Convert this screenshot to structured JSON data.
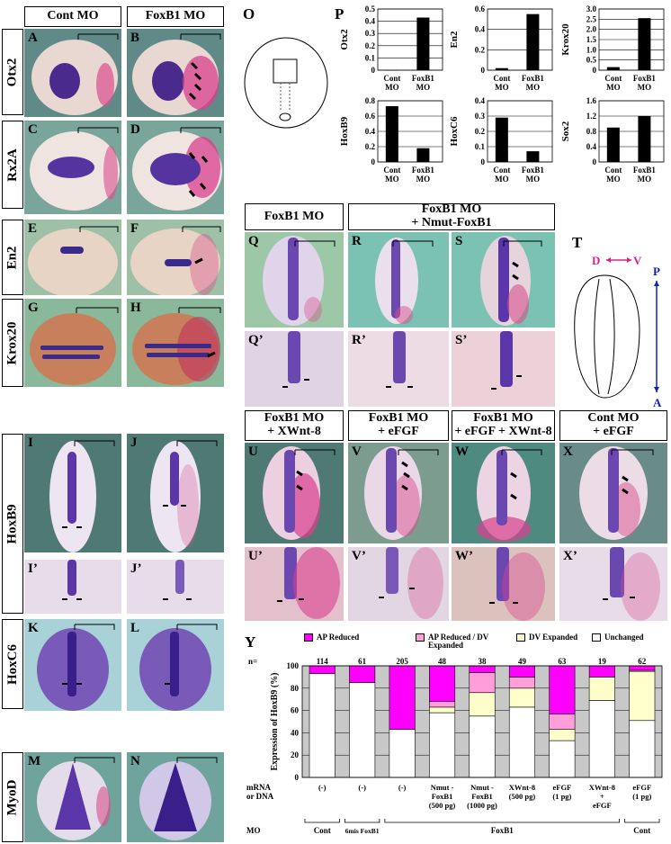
{
  "left_headers": {
    "cont": "Cont MO",
    "foxb1": "FoxB1 MO"
  },
  "row_labels": [
    "Otx2",
    "Rx2A",
    "En2",
    "Krox20",
    "HoxB9",
    "HoxC6",
    "MyoD"
  ],
  "left_panel_letters": [
    "A",
    "B",
    "C",
    "D",
    "E",
    "F",
    "G",
    "H",
    "I",
    "J",
    "I’",
    "J’",
    "K",
    "L",
    "M",
    "N"
  ],
  "fig_letters": {
    "O": "O",
    "P": "P",
    "T": "T",
    "Y": "Y"
  },
  "mid_headers": {
    "foxb1": "FoxB1 MO",
    "rescue_l1": "FoxB1 MO",
    "rescue_l2": "+ Nmut-FoxB1"
  },
  "mid_panel_letters": [
    "Q",
    "R",
    "S",
    "Q’",
    "R’",
    "S’"
  ],
  "low_headers": [
    {
      "l1": "FoxB1 MO",
      "l2": "+ XWnt-8"
    },
    {
      "l1": "FoxB1 MO",
      "l2": "+ eFGF"
    },
    {
      "l1": "FoxB1 MO",
      "l2": "+ eFGF + XWnt-8"
    },
    {
      "l1": "Cont MO",
      "l2": "+ eFGF"
    }
  ],
  "low_panel_letters": [
    "U",
    "V",
    "W",
    "X",
    "U’",
    "V’",
    "W’",
    "X’"
  ],
  "axis_labels": {
    "d": "D",
    "v": "V",
    "p": "P",
    "a": "A"
  },
  "chart_data": [
    {
      "type": "bar",
      "ylabel": "Otx2",
      "categories": [
        "Cont MO",
        "FoxB1 MO"
      ],
      "values": [
        0.0,
        0.43
      ],
      "ylim": [
        0,
        0.5
      ],
      "ticks": [
        "0",
        "0.1",
        "0.2",
        "0.3",
        "0.4",
        "0.5"
      ]
    },
    {
      "type": "bar",
      "ylabel": "En2",
      "categories": [
        "Cont MO",
        "FoxB1 MO"
      ],
      "values": [
        0.02,
        0.55
      ],
      "ylim": [
        0,
        0.6
      ],
      "ticks": [
        "0",
        "0.2",
        "0.4",
        "0.6"
      ]
    },
    {
      "type": "bar",
      "ylabel": "Krox20",
      "categories": [
        "Cont MO",
        "FoxB1 MO"
      ],
      "values": [
        0.15,
        2.55
      ],
      "ylim": [
        0,
        3.0
      ],
      "ticks": [
        "0",
        "0.5",
        "1.0",
        "1.5",
        "2.0",
        "2.5",
        "3.0"
      ]
    },
    {
      "type": "bar",
      "ylabel": "HoxB9",
      "categories": [
        "Cont MO",
        "FoxB1 MO"
      ],
      "values": [
        0.73,
        0.18
      ],
      "ylim": [
        0,
        0.8
      ],
      "ticks": [
        "0",
        "0.2",
        "0.4",
        "0.6",
        "0.8"
      ]
    },
    {
      "type": "bar",
      "ylabel": "HoxC6",
      "categories": [
        "Cont MO",
        "FoxB1 MO"
      ],
      "values": [
        0.29,
        0.07
      ],
      "ylim": [
        0,
        0.4
      ],
      "ticks": [
        "0",
        "0.1",
        "0.2",
        "0.3",
        "0.4"
      ]
    },
    {
      "type": "bar",
      "ylabel": "Sox2",
      "categories": [
        "Cont MO",
        "FoxB1 MO"
      ],
      "values": [
        0.9,
        1.2
      ],
      "ylim": [
        0,
        1.6
      ],
      "ticks": [
        "0",
        "0.4",
        "0.8",
        "1.2",
        "1.6"
      ]
    },
    {
      "type": "bar",
      "stacked": true,
      "ylabel": "Expression of HoxB9 (%)",
      "ylim": [
        0,
        100
      ],
      "ticks": [
        "0",
        "20",
        "40",
        "60",
        "80",
        "100"
      ],
      "legend": [
        {
          "name": "AP Reduced",
          "color": "#ff00ff"
        },
        {
          "name": "AP Reduced / DV Expanded",
          "color": "#ff9ed8"
        },
        {
          "name": "DV Expanded",
          "color": "#ffffcc"
        },
        {
          "name": "Unchanged",
          "color": "#ffffff"
        }
      ],
      "n_label": "n=",
      "n_values": [
        "114",
        "61",
        "205",
        "48",
        "38",
        "49",
        "63",
        "19",
        "62"
      ],
      "row_label_1": "mRNA",
      "row_label_2": "or DNA",
      "mo_label": "MO",
      "treatments": [
        [
          "(-)"
        ],
        [
          "(-)"
        ],
        [
          "(-)"
        ],
        [
          "Nmut -",
          "FoxB1",
          "(500 pg)"
        ],
        [
          "Nmut -",
          "FoxB1",
          "(1000 pg)"
        ],
        [
          "XWnt-8",
          "(500 pg)"
        ],
        [
          "eFGF",
          "(1 pg)"
        ],
        [
          "XWnt-8",
          "+",
          "eFGF"
        ],
        [
          "eFGF",
          "(1 pg)"
        ]
      ],
      "mo_groups": [
        "Cont",
        "6mis FoxB1",
        "FoxB1",
        "Cont"
      ],
      "series": [
        {
          "name": "Unchanged",
          "values": [
            93,
            85,
            43,
            58,
            55,
            63,
            33,
            69,
            51
          ]
        },
        {
          "name": "DV Expanded",
          "values": [
            0,
            0,
            0,
            5,
            21,
            17,
            10,
            21,
            44
          ]
        },
        {
          "name": "AP Reduced / DV Expanded",
          "values": [
            0,
            0,
            0,
            5,
            18,
            10,
            14,
            0,
            1
          ]
        },
        {
          "name": "AP Reduced",
          "values": [
            7,
            15,
            57,
            32,
            6,
            10,
            43,
            10,
            4
          ]
        }
      ]
    }
  ]
}
